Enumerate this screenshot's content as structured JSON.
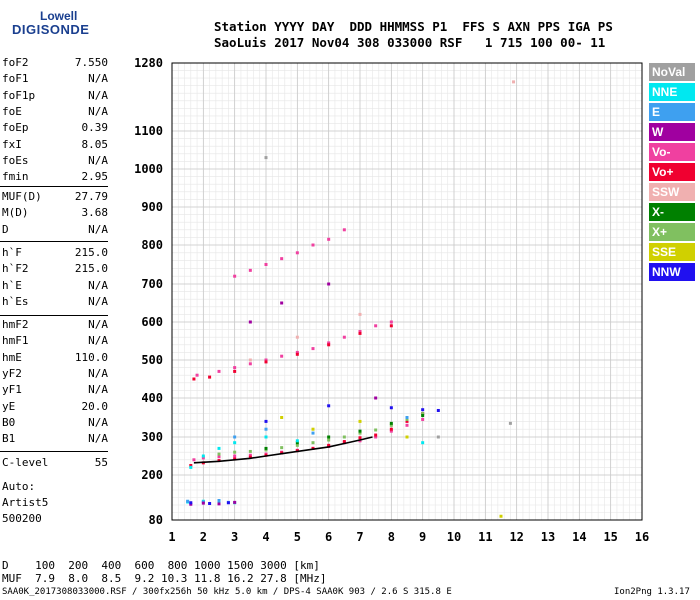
{
  "logo": {
    "top": "Lowell",
    "bottom": "DIGISONDE"
  },
  "header": {
    "line1": "Station YYYY DAY  DDD HHMMSS P1  FFS S AXN PPS IGA PS",
    "line2": "SaoLuis 2017 Nov04 308 033000 RSF   1 715 100 00- 11"
  },
  "params_group1": [
    {
      "label": "foF2",
      "value": "7.550"
    },
    {
      "label": "foF1",
      "value": "N/A"
    },
    {
      "label": "foF1p",
      "value": "N/A"
    },
    {
      "label": "foE",
      "value": "N/A"
    },
    {
      "label": "foEp",
      "value": "0.39"
    },
    {
      "label": "fxI",
      "value": "8.05"
    },
    {
      "label": "foEs",
      "value": "N/A"
    },
    {
      "label": "fmin",
      "value": "2.95"
    }
  ],
  "params_group2": [
    {
      "label": "MUF(D)",
      "value": "27.79"
    },
    {
      "label": "M(D)",
      "value": "3.68"
    },
    {
      "label": "D",
      "value": "N/A"
    }
  ],
  "params_group3": [
    {
      "label": "h`F",
      "value": "215.0"
    },
    {
      "label": "h`F2",
      "value": "215.0"
    },
    {
      "label": "h`E",
      "value": "N/A"
    },
    {
      "label": "h`Es",
      "value": "N/A"
    }
  ],
  "params_group4": [
    {
      "label": "hmF2",
      "value": "N/A"
    },
    {
      "label": "hmF1",
      "value": "N/A"
    },
    {
      "label": "hmE",
      "value": "110.0"
    },
    {
      "label": "yF2",
      "value": "N/A"
    },
    {
      "label": "yF1",
      "value": "N/A"
    },
    {
      "label": "yE",
      "value": "20.0"
    },
    {
      "label": "B0",
      "value": "N/A"
    },
    {
      "label": "B1",
      "value": "N/A"
    }
  ],
  "clevel": {
    "label": "C-level",
    "value": "55"
  },
  "auto": [
    "Auto:",
    "Artist5",
    "500200"
  ],
  "legend": [
    {
      "label": "NoVal",
      "color": "#a0a0a0"
    },
    {
      "label": "NNE",
      "color": "#00e8f0"
    },
    {
      "label": "E",
      "color": "#3ea0f0"
    },
    {
      "label": "W",
      "color": "#a000a0"
    },
    {
      "label": "Vo-",
      "color": "#f040a0"
    },
    {
      "label": "Vo+",
      "color": "#f00030"
    },
    {
      "label": "SSW",
      "color": "#f0b0b0"
    },
    {
      "label": "X-",
      "color": "#008000"
    },
    {
      "label": "X+",
      "color": "#80c060"
    },
    {
      "label": "SSE",
      "color": "#d0d000"
    },
    {
      "label": "NNW",
      "color": "#2010f0"
    }
  ],
  "bottom": {
    "line1": "D    100  200  400  600  800 1000 1500 3000 [km]",
    "line2": "MUF  7.9  8.0  8.5  9.2 10.3 11.8 16.2 27.8 [MHz]"
  },
  "footer": {
    "left": "SAA0K_2017308033000.RSF / 300fx256h 50 kHz 5.0 km / DPS-4 SAA0K 903 / 2.6 S 315.8 E",
    "right": "Ion2Png 1.3.17"
  },
  "chart_data": {
    "type": "scatter",
    "title": "",
    "xlabel": "",
    "ylabel": "",
    "xlim": [
      1,
      16
    ],
    "ylim": [
      80,
      1280
    ],
    "x_ticks": [
      1,
      2,
      3,
      4,
      5,
      6,
      7,
      8,
      9,
      10,
      11,
      12,
      13,
      14,
      15,
      16
    ],
    "y_ticks": [
      80,
      200,
      300,
      400,
      500,
      600,
      700,
      800,
      900,
      1000,
      1100,
      1280
    ],
    "grid": true,
    "legend_position": "right",
    "series": [
      {
        "label_ref": "Vo-",
        "points": [
          [
            1.7,
            240
          ],
          [
            2.0,
            245
          ],
          [
            2.5,
            248
          ],
          [
            3.0,
            250
          ],
          [
            3.5,
            252
          ],
          [
            4.0,
            255
          ],
          [
            4.5,
            260
          ],
          [
            5.0,
            265
          ],
          [
            5.5,
            270
          ],
          [
            6.0,
            275
          ],
          [
            6.5,
            285
          ],
          [
            7.0,
            290
          ],
          [
            7.5,
            300
          ],
          [
            8.0,
            315
          ],
          [
            8.5,
            330
          ],
          [
            9.0,
            345
          ],
          [
            1.8,
            460
          ],
          [
            2.5,
            470
          ],
          [
            3.0,
            480
          ],
          [
            3.5,
            490
          ],
          [
            4.0,
            500
          ],
          [
            4.5,
            510
          ],
          [
            5.0,
            520
          ],
          [
            5.5,
            530
          ],
          [
            6.0,
            545
          ],
          [
            6.5,
            560
          ],
          [
            7.0,
            575
          ],
          [
            7.5,
            590
          ],
          [
            8.0,
            600
          ],
          [
            3.0,
            720
          ],
          [
            3.5,
            735
          ],
          [
            4.0,
            750
          ],
          [
            4.5,
            765
          ],
          [
            5.0,
            780
          ],
          [
            5.5,
            800
          ],
          [
            6.0,
            815
          ],
          [
            6.5,
            840
          ]
        ]
      },
      {
        "label_ref": "Vo+",
        "points": [
          [
            1.6,
            225
          ],
          [
            2.0,
            232
          ],
          [
            2.5,
            238
          ],
          [
            3.0,
            242
          ],
          [
            3.5,
            247
          ],
          [
            4.0,
            252
          ],
          [
            4.5,
            258
          ],
          [
            5.0,
            264
          ],
          [
            5.5,
            270
          ],
          [
            6.0,
            278
          ],
          [
            6.5,
            288
          ],
          [
            7.0,
            298
          ],
          [
            7.5,
            305
          ],
          [
            8.0,
            320
          ],
          [
            8.5,
            340
          ],
          [
            9.0,
            360
          ],
          [
            1.7,
            450
          ],
          [
            2.2,
            455
          ],
          [
            3.0,
            470
          ],
          [
            4.0,
            495
          ],
          [
            5.0,
            515
          ],
          [
            6.0,
            540
          ],
          [
            7.0,
            570
          ],
          [
            8.0,
            590
          ]
        ]
      },
      {
        "label_ref": "X+",
        "points": [
          [
            2.5,
            255
          ],
          [
            3.0,
            260
          ],
          [
            3.5,
            262
          ],
          [
            4.0,
            266
          ],
          [
            4.5,
            272
          ],
          [
            5.0,
            278
          ],
          [
            5.5,
            285
          ],
          [
            6.0,
            292
          ],
          [
            6.5,
            300
          ],
          [
            7.0,
            310
          ],
          [
            7.5,
            318
          ],
          [
            8.0,
            330
          ],
          [
            8.5,
            345
          ],
          [
            9.0,
            360
          ]
        ]
      },
      {
        "label_ref": "X-",
        "points": [
          [
            4.0,
            270
          ],
          [
            5.0,
            285
          ],
          [
            6.0,
            300
          ],
          [
            7.0,
            315
          ],
          [
            8.0,
            335
          ],
          [
            9.0,
            355
          ]
        ]
      },
      {
        "label_ref": "NNE",
        "points": [
          [
            1.6,
            220
          ],
          [
            2.0,
            250
          ],
          [
            2.5,
            270
          ],
          [
            3.0,
            285
          ],
          [
            1.5,
            128
          ],
          [
            2.0,
            130
          ],
          [
            2.5,
            128
          ],
          [
            3.0,
            126
          ],
          [
            4.0,
            300
          ],
          [
            5.0,
            290
          ],
          [
            9.0,
            285
          ]
        ]
      },
      {
        "label_ref": "E",
        "points": [
          [
            1.5,
            130
          ],
          [
            2.0,
            128
          ],
          [
            2.5,
            132
          ],
          [
            2.8,
            127
          ],
          [
            3.0,
            300
          ],
          [
            4.0,
            320
          ],
          [
            5.5,
            310
          ],
          [
            8.5,
            350
          ]
        ]
      },
      {
        "label_ref": "W",
        "points": [
          [
            1.6,
            122
          ],
          [
            2.0,
            125
          ],
          [
            2.5,
            123
          ],
          [
            3.0,
            127
          ],
          [
            3.5,
            600
          ],
          [
            4.5,
            650
          ],
          [
            6.0,
            700
          ],
          [
            7.5,
            400
          ]
        ]
      },
      {
        "label_ref": "NNW",
        "points": [
          [
            1.6,
            126
          ],
          [
            2.2,
            124
          ],
          [
            2.8,
            126
          ],
          [
            4.0,
            340
          ],
          [
            6.0,
            380
          ],
          [
            8.0,
            375
          ],
          [
            9.0,
            370
          ],
          [
            9.5,
            368
          ]
        ]
      },
      {
        "label_ref": "SSE",
        "points": [
          [
            4.5,
            350
          ],
          [
            5.5,
            320
          ],
          [
            7.0,
            340
          ],
          [
            8.5,
            300
          ],
          [
            11.5,
            90
          ]
        ]
      },
      {
        "label_ref": "SSW",
        "points": [
          [
            3.5,
            500
          ],
          [
            5.0,
            560
          ],
          [
            7.0,
            620
          ],
          [
            11.9,
            1230
          ]
        ]
      },
      {
        "label_ref": "NoVal",
        "points": [
          [
            4.0,
            1030
          ],
          [
            9.5,
            300
          ],
          [
            11.8,
            335
          ]
        ]
      }
    ],
    "trace_line": {
      "color": "#000000",
      "points": [
        [
          1.7,
          232
        ],
        [
          2.5,
          236
        ],
        [
          3.0,
          240
        ],
        [
          3.5,
          244
        ],
        [
          4.0,
          250
        ],
        [
          4.5,
          256
        ],
        [
          5.0,
          262
        ],
        [
          5.5,
          268
        ],
        [
          6.0,
          274
        ],
        [
          6.5,
          283
        ],
        [
          7.0,
          292
        ],
        [
          7.4,
          300
        ]
      ]
    }
  }
}
